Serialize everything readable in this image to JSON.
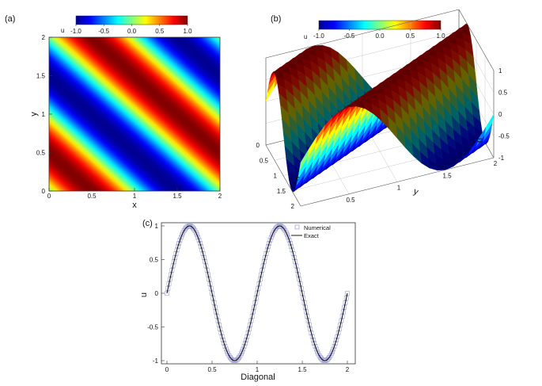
{
  "chart_data": [
    {
      "panel": "(a)",
      "type": "heatmap",
      "function": "u = sin(pi*(x+y))",
      "colorbar": {
        "label": "u",
        "min": -1.0,
        "max": 1.0,
        "ticks": [
          "-1.0",
          "-0.5",
          "0.0",
          "0.5",
          "1.0"
        ]
      },
      "xlabel": "x",
      "ylabel": "y",
      "xlim": [
        0,
        2
      ],
      "ylim": [
        0,
        2
      ],
      "xticks": [
        "0",
        "0.5",
        "1",
        "1.5",
        "2"
      ],
      "yticks": [
        "0",
        "0.5",
        "1",
        "1.5",
        "2"
      ]
    },
    {
      "panel": "(b)",
      "type": "surface3d",
      "function": "u = sin(pi*(x+y))",
      "colorbar": {
        "label": "u",
        "min": -1.0,
        "max": 1.0,
        "ticks": [
          "-1.0",
          "-0.5",
          "0.0",
          "0.5",
          "1.0"
        ]
      },
      "xlabel": "x",
      "ylabel": "y",
      "zlabel": "u",
      "xlim": [
        0,
        2
      ],
      "ylim": [
        0,
        2
      ],
      "zlim": [
        -1,
        1
      ],
      "xticks": [
        "0",
        "0.5",
        "1",
        "1.5",
        "2"
      ],
      "yticks": [
        "0.5",
        "1",
        "1.5",
        "2"
      ],
      "zticks": [
        "1",
        "0.5",
        "0",
        "-0.5",
        "-1"
      ]
    },
    {
      "panel": "(c)",
      "type": "line",
      "xlabel": "Diagonal",
      "ylabel": "u",
      "xlim": [
        0,
        2
      ],
      "ylim": [
        -1,
        1
      ],
      "xticks": [
        "0",
        "0.5",
        "1",
        "1.5",
        "2"
      ],
      "yticks": [
        "1",
        "0.5",
        "0",
        "-0.5",
        "-1"
      ],
      "legend": {
        "position": "top-right"
      },
      "series": [
        {
          "name": "Numerical",
          "style": "square-markers",
          "color": "#9a9ad8",
          "function": "u = sin(2*pi*s)",
          "x_start": 0.0,
          "x_end": 2.0,
          "points": 181
        },
        {
          "name": "Exact",
          "style": "solid-line",
          "color": "#000000",
          "function": "u = sin(2*pi*s)",
          "x_start": 0.0,
          "x_end": 2.0,
          "points": 161
        }
      ],
      "sample_values": {
        "x": [
          0,
          0.25,
          0.5,
          0.75,
          1.0,
          1.25,
          1.5,
          1.75,
          2.0
        ],
        "y": [
          0,
          1,
          0,
          -1,
          0,
          1,
          0,
          -1,
          0
        ]
      }
    }
  ]
}
